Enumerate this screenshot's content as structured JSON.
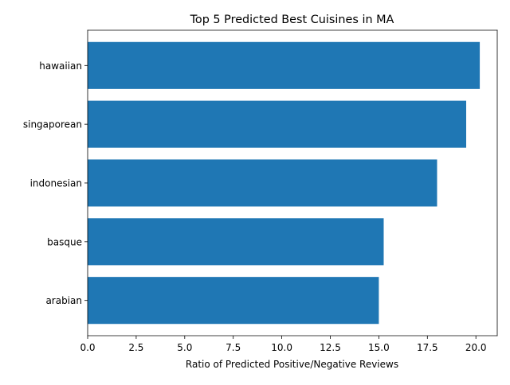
{
  "chart_data": {
    "type": "bar",
    "orientation": "horizontal",
    "title": "Top 5 Predicted Best Cuisines in MA",
    "xlabel": "Ratio of Predicted Positive/Negative Reviews",
    "ylabel": "",
    "categories": [
      "hawaiian",
      "singaporean",
      "indonesian",
      "basque",
      "arabian"
    ],
    "values": [
      20.2,
      19.5,
      18.0,
      15.25,
      15.0
    ],
    "xlim": [
      0,
      21.1
    ],
    "xticks": [
      "0.0",
      "2.5",
      "5.0",
      "7.5",
      "10.0",
      "12.5",
      "15.0",
      "17.5",
      "20.0"
    ],
    "bar_color": "#1f77b4",
    "grid": false,
    "legend": "none"
  }
}
